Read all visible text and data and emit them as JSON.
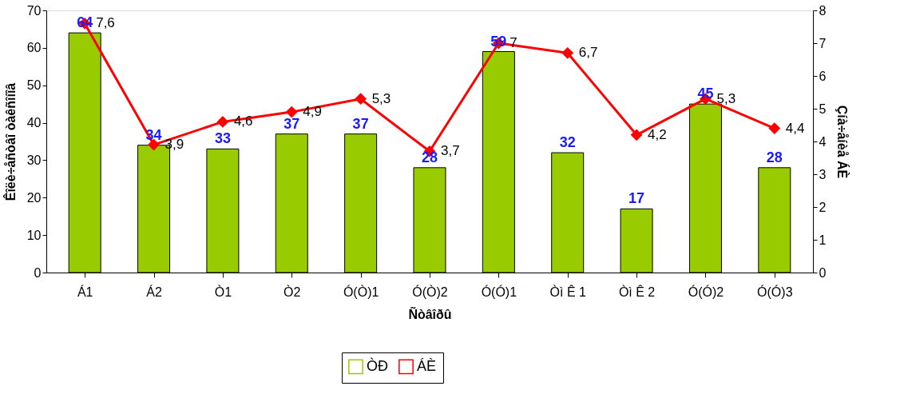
{
  "chart_data": {
    "type": "bar",
    "xlabel": "Ñòâîðû",
    "ylabel": "Êîëè÷åñòâî òàêñîíîâ",
    "y2label": "Çíà÷åíèå ÁÈ",
    "categories": [
      "Á1",
      "Á2",
      "Ò1",
      "Ò2",
      "Ó(Ò)1",
      "Ó(Ò)2",
      "Ó(Ó)1",
      "Òì Ê 1",
      "Òì Ê 2",
      "Ó(Ó)2",
      "Ó(Ó)3"
    ],
    "series": [
      {
        "name": "ÒÐ",
        "color": "#99cc00",
        "values": [
          64,
          34,
          33,
          37,
          37,
          28,
          59,
          32,
          17,
          45,
          28
        ],
        "value_labels": [
          "64",
          "34",
          "33",
          "37",
          "37",
          "28",
          "59",
          "32",
          "17",
          "45",
          "28"
        ]
      },
      {
        "name": "ÁÈ",
        "type": "line",
        "axis": "y2",
        "color": "#ff0000",
        "marker": "diamond",
        "values": [
          7.6,
          3.9,
          4.6,
          4.9,
          5.3,
          3.7,
          7,
          6.7,
          4.2,
          5.3,
          4.4
        ],
        "value_labels": [
          "7,6",
          "3,9",
          "4,6",
          "4,9",
          "5,3",
          "3,7",
          "7",
          "6,7",
          "4,2",
          "5,3",
          "4,4"
        ]
      }
    ],
    "ylim": [
      0,
      70
    ],
    "yticks": [
      0,
      10,
      20,
      30,
      40,
      50,
      60,
      70
    ],
    "y2lim": [
      0,
      8
    ],
    "y2ticks": [
      0,
      1,
      2,
      3,
      4,
      5,
      6,
      7,
      8
    ],
    "grid": false,
    "legend": "bottom"
  }
}
